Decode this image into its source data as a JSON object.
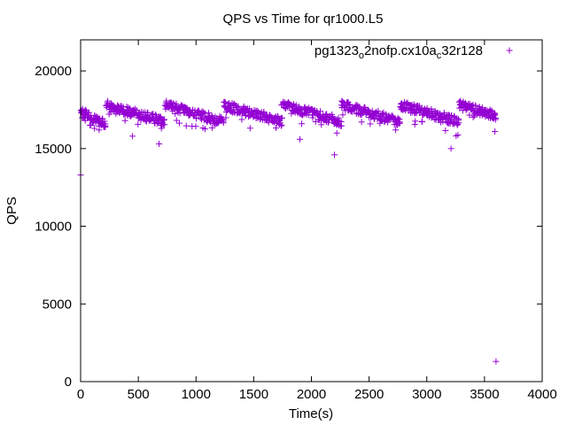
{
  "chart_data": {
    "type": "scatter",
    "title": "QPS vs Time for qr1000.L5",
    "xlabel": "Time(s)",
    "ylabel": "QPS",
    "xlim": [
      0,
      4000
    ],
    "ylim": [
      0,
      22000
    ],
    "xticks": [
      0,
      500,
      1000,
      1500,
      2000,
      2500,
      3000,
      3500,
      4000
    ],
    "yticks": [
      0,
      5000,
      10000,
      15000,
      20000
    ],
    "grid": false,
    "legend_position": "top-right",
    "series": [
      {
        "name": "pg1323_o2nofp.cx10a_c32r128",
        "legend_parts": [
          {
            "text": "pg1323",
            "sub": false
          },
          {
            "text": "o",
            "sub": true
          },
          {
            "text": "2nofp.cx10a",
            "sub": false
          },
          {
            "text": "c",
            "sub": true
          },
          {
            "text": "32r128",
            "sub": false
          }
        ],
        "color": "#9400d3",
        "marker": "plus",
        "sampling_interval_s": 10,
        "cycle_period_s": 510,
        "cycle_start_s": 220,
        "cycle_high_qps": 17800,
        "cycle_low_qps": 16700,
        "scatter_spread_qps": 600,
        "points": [
          [
            0,
            13300
          ],
          [
            10,
            17400
          ],
          [
            20,
            17200
          ],
          [
            30,
            17000
          ],
          [
            40,
            16800
          ],
          [
            80,
            16500
          ],
          [
            120,
            16300
          ],
          [
            160,
            16200
          ],
          [
            200,
            16400
          ],
          [
            230,
            17800
          ],
          [
            300,
            17600
          ],
          [
            400,
            17300
          ],
          [
            450,
            15800
          ],
          [
            600,
            16900
          ],
          [
            680,
            15300
          ],
          [
            700,
            16300
          ],
          [
            740,
            17800
          ],
          [
            900,
            17300
          ],
          [
            1200,
            16800
          ],
          [
            1250,
            17700
          ],
          [
            1740,
            17800
          ],
          [
            1900,
            15600
          ],
          [
            2200,
            14600
          ],
          [
            2220,
            16000
          ],
          [
            2260,
            17800
          ],
          [
            2500,
            17000
          ],
          [
            2730,
            16200
          ],
          [
            2770,
            17700
          ],
          [
            2900,
            17300
          ],
          [
            3210,
            15000
          ],
          [
            3280,
            18000
          ],
          [
            3500,
            17400
          ],
          [
            3580,
            17000
          ],
          [
            3590,
            16100
          ],
          [
            3600,
            1300
          ]
        ]
      }
    ]
  }
}
